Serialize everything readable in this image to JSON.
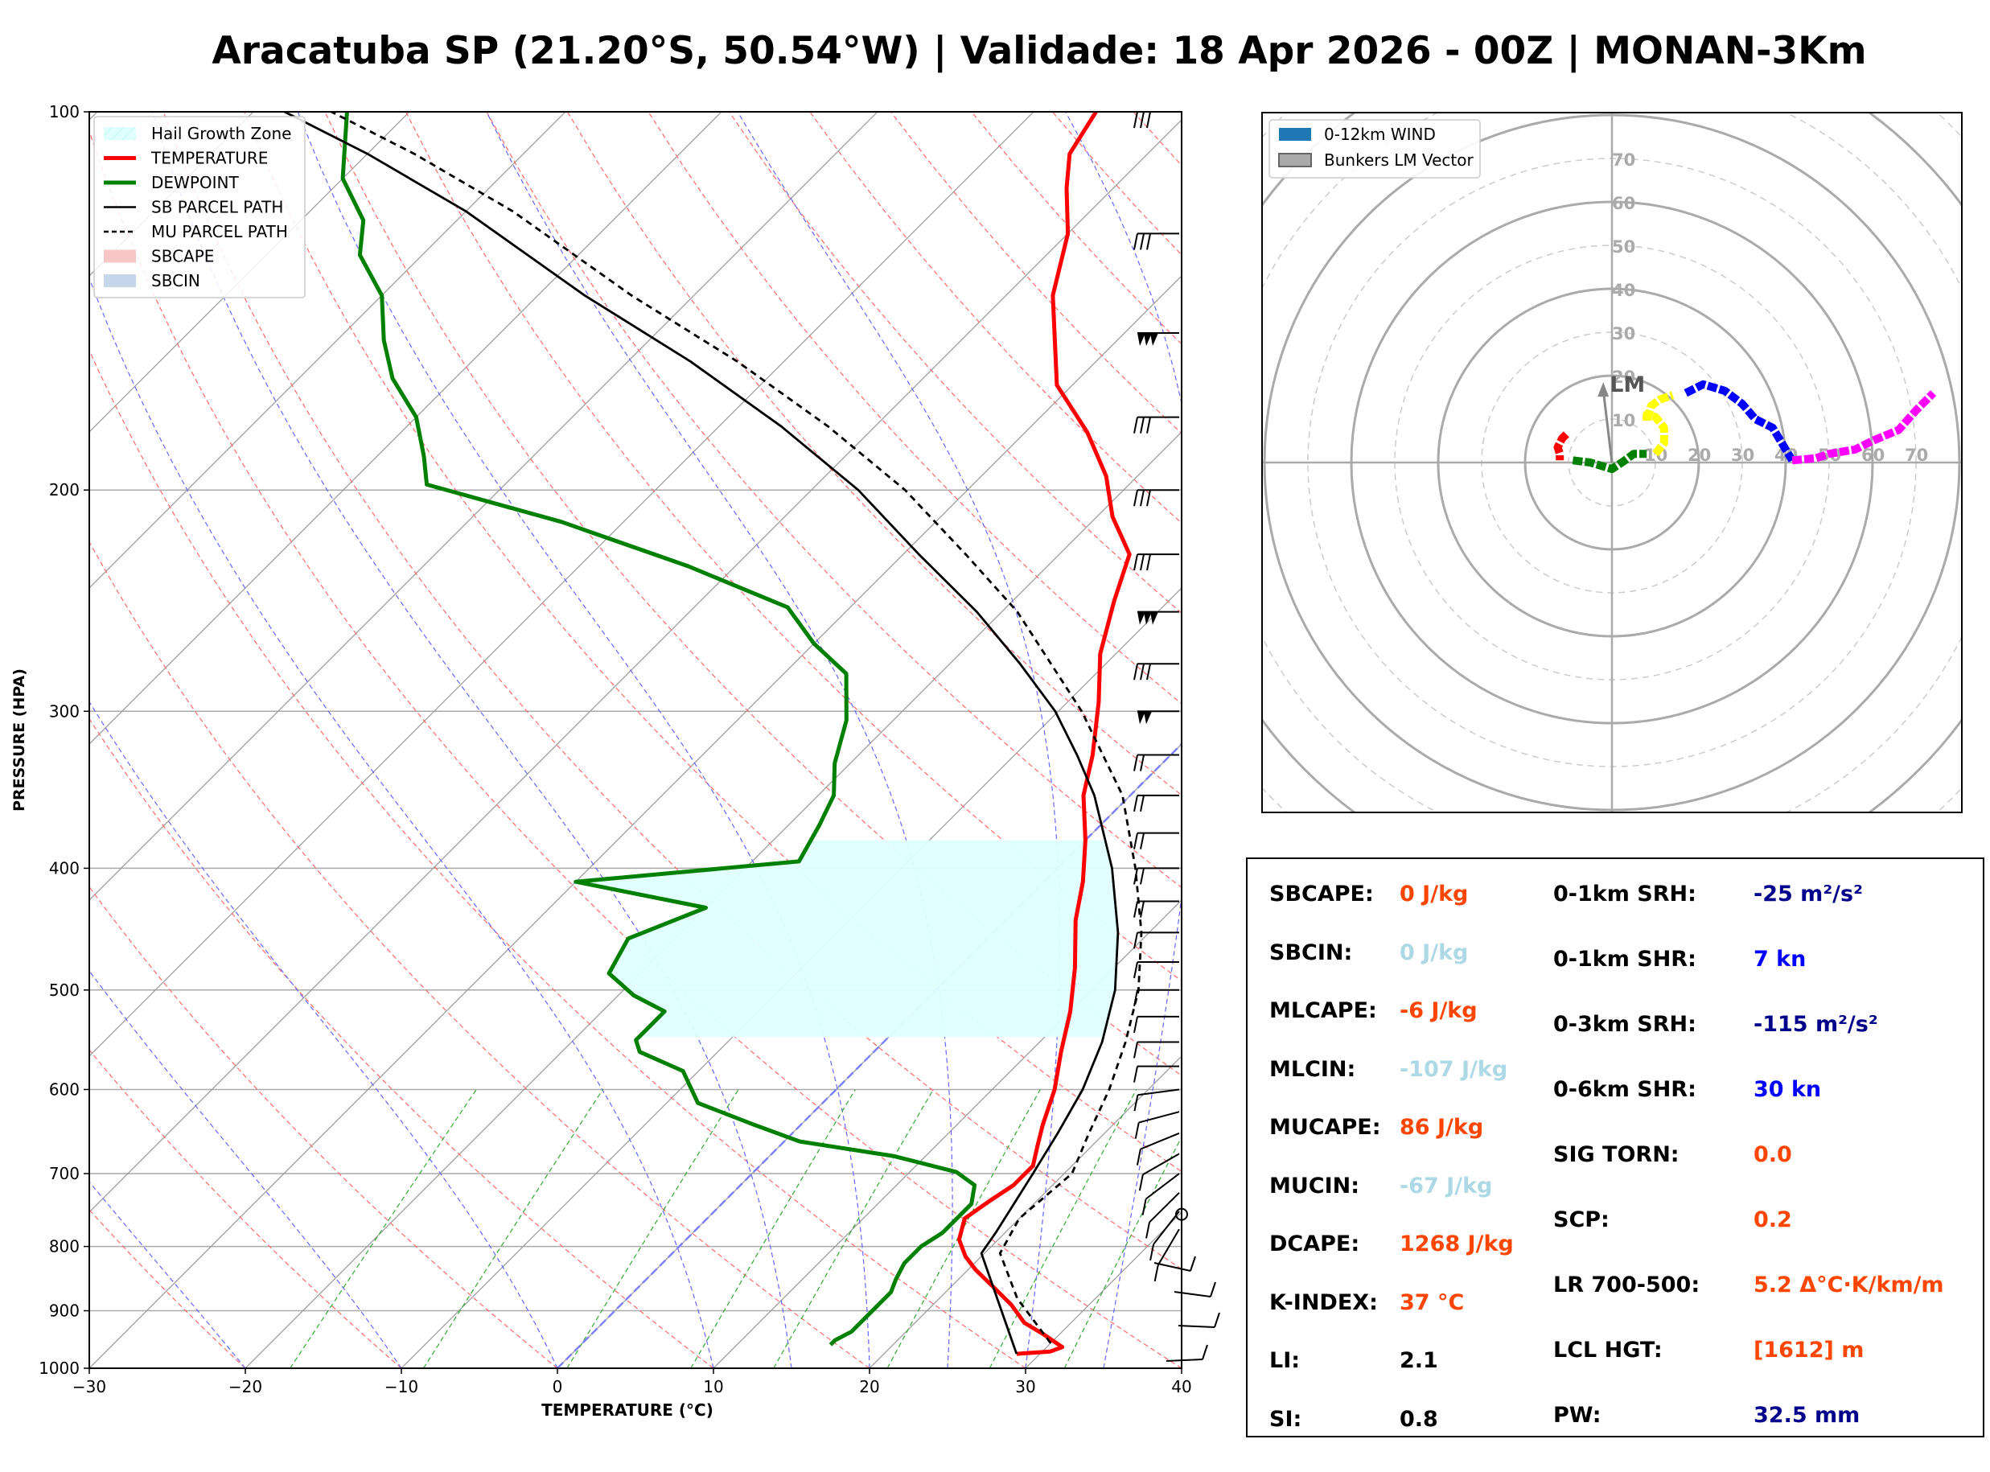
{
  "title": "Aracatuba SP (21.20°S, 50.54°W) | Validade: 18 Apr 2026 - 00Z | MONAN-3Km",
  "chart_data": [
    {
      "type": "skew-t",
      "xlabel": "TEMPERATURE (°C)",
      "ylabel": "PRESSURE (HPA)",
      "xlim": [
        -30,
        40
      ],
      "ylim": [
        1000,
        100
      ],
      "x_ticks": [
        "−30",
        "−20",
        "−10",
        "0",
        "10",
        "20",
        "30",
        "40"
      ],
      "x_tick_values": [
        -30,
        -20,
        -10,
        0,
        10,
        20,
        30,
        40
      ],
      "y_ticks": [
        "100",
        "200",
        "300",
        "400",
        "500",
        "600",
        "700",
        "800",
        "900",
        "1000"
      ],
      "y_tick_values": [
        100,
        200,
        300,
        400,
        500,
        600,
        700,
        800,
        900,
        1000
      ],
      "legend": {
        "location": "top-left",
        "entries": [
          {
            "label": "Hail Growth Zone",
            "color": "#e0ffff",
            "style": "patch-hatched"
          },
          {
            "label": "TEMPERATURE",
            "color": "#ff0000",
            "style": "line"
          },
          {
            "label": "DEWPOINT",
            "color": "#008000",
            "style": "line"
          },
          {
            "label": "SB PARCEL PATH",
            "color": "#000000",
            "style": "line"
          },
          {
            "label": "MU PARCEL PATH",
            "color": "#000000",
            "style": "dashed"
          },
          {
            "label": "SBCAPE",
            "color": "#f7c6c6",
            "style": "patch"
          },
          {
            "label": "SBCIN",
            "color": "#c6d6ea",
            "style": "patch"
          }
        ]
      },
      "series": [
        {
          "name": "TEMPERATURE",
          "color": "#ff0000",
          "points": [
            [
              28.5,
              974
            ],
            [
              30.5,
              970
            ],
            [
              31,
              962
            ],
            [
              29,
              940
            ],
            [
              27,
              920
            ],
            [
              25,
              890
            ],
            [
              23,
              865
            ],
            [
              20.5,
              835
            ],
            [
              19,
              815
            ],
            [
              17.5,
              790
            ],
            [
              16.5,
              760
            ],
            [
              17,
              735
            ],
            [
              17.5,
              715
            ],
            [
              17.5,
              690
            ],
            [
              16.5,
              665
            ],
            [
              15.5,
              640
            ],
            [
              14,
              600
            ],
            [
              12,
              560
            ],
            [
              10,
              520
            ],
            [
              7.5,
              480
            ],
            [
              4.5,
              440
            ],
            [
              2.5,
              410
            ],
            [
              0,
              380
            ],
            [
              -3,
              350
            ],
            [
              -5,
              325
            ],
            [
              -8,
              295
            ],
            [
              -11,
              270
            ],
            [
              -13.5,
              245
            ],
            [
              -15.5,
              225
            ],
            [
              -19,
              210
            ],
            [
              -22,
              195
            ],
            [
              -26,
              180
            ],
            [
              -31,
              165
            ],
            [
              -34,
              152
            ],
            [
              -37,
              140
            ],
            [
              -40,
              125
            ],
            [
              -43,
              115
            ],
            [
              -45,
              108
            ],
            [
              -46,
              100
            ]
          ]
        },
        {
          "name": "DEWPOINT",
          "color": "#008000",
          "points": [
            [
              16,
              958
            ],
            [
              16,
              950
            ],
            [
              16.5,
              935
            ],
            [
              16.5,
              918
            ],
            [
              16.5,
              905
            ],
            [
              16.5,
              888
            ],
            [
              16.5,
              870
            ],
            [
              16,
              850
            ],
            [
              15.5,
              825
            ],
            [
              15.5,
              800
            ],
            [
              16,
              780
            ],
            [
              16,
              760
            ],
            [
              16,
              740
            ],
            [
              15,
              715
            ],
            [
              13,
              698
            ],
            [
              8,
              678
            ],
            [
              1,
              660
            ],
            [
              -3,
              640
            ],
            [
              -8,
              615
            ],
            [
              -11,
              580
            ],
            [
              -15,
              560
            ],
            [
              -16,
              548
            ],
            [
              -16,
              520
            ],
            [
              -19,
              505
            ],
            [
              -22,
              485
            ],
            [
              -23,
              455
            ],
            [
              -20,
              430
            ],
            [
              -30,
              410
            ],
            [
              -17,
              395
            ],
            [
              -18,
              370
            ],
            [
              -19,
              350
            ],
            [
              -21,
              330
            ],
            [
              -23,
              305
            ],
            [
              -26,
              280
            ],
            [
              -30,
              265
            ],
            [
              -34,
              248
            ],
            [
              -43,
              230
            ],
            [
              -54,
              212
            ],
            [
              -65,
              198
            ],
            [
              -67,
              188
            ],
            [
              -70,
              175
            ],
            [
              -74,
              163
            ],
            [
              -77,
              152
            ],
            [
              -80,
              140
            ],
            [
              -84,
              130
            ],
            [
              -86,
              122
            ],
            [
              -90,
              113
            ],
            [
              -94,
              100
            ]
          ]
        },
        {
          "name": "SB PARCEL PATH",
          "color": "#000000",
          "style": "solid",
          "points": [
            [
              28.5,
              974
            ],
            [
              19.8,
              810
            ],
            [
              19.4,
              780
            ],
            [
              18,
              700
            ],
            [
              17,
              650
            ],
            [
              15.8,
              600
            ],
            [
              14,
              550
            ],
            [
              11.5,
              500
            ],
            [
              8,
              450
            ],
            [
              3.5,
              400
            ],
            [
              -2.3,
              350
            ],
            [
              -6,
              325
            ],
            [
              -10.2,
              300
            ],
            [
              -15.5,
              275
            ],
            [
              -21.6,
              250
            ],
            [
              -29,
              225
            ],
            [
              -37,
              200
            ],
            [
              -46,
              178
            ],
            [
              -56,
              158
            ],
            [
              -67,
              140
            ],
            [
              -80,
              120
            ],
            [
              -90,
              108
            ],
            [
              -98,
              100
            ]
          ]
        },
        {
          "name": "MU PARCEL PATH",
          "color": "#000000",
          "style": "dashed",
          "points": [
            [
              30,
              955
            ],
            [
              25,
              880
            ],
            [
              21,
              810
            ],
            [
              20,
              760
            ],
            [
              20.5,
              700
            ],
            [
              19,
              650
            ],
            [
              17.5,
              600
            ],
            [
              15.5,
              550
            ],
            [
              13,
              500
            ],
            [
              9.5,
              450
            ],
            [
              5,
              400
            ],
            [
              -0.5,
              350
            ],
            [
              -8.5,
              300
            ],
            [
              -19,
              250
            ],
            [
              -26,
              225
            ],
            [
              -34,
              200
            ],
            [
              -43,
              178
            ],
            [
              -53,
              158
            ],
            [
              -64,
              140
            ],
            [
              -77,
              120
            ],
            [
              -87,
              108
            ],
            [
              -95,
              100
            ]
          ]
        }
      ],
      "hail_growth_zone": {
        "p_bottom": 545,
        "p_top": 380,
        "color": "#e0ffff"
      },
      "wind_barbs_note": "wind barbs at right edge from 1000 to 100 hPa"
    },
    {
      "type": "hodograph",
      "ring_labels_vertical": [
        "10",
        "20",
        "30",
        "40",
        "50",
        "60",
        "70"
      ],
      "ring_labels_horizontal": [
        "10",
        "20",
        "30",
        "40",
        "50",
        "60",
        "70"
      ],
      "lm_label": "LM",
      "legend": {
        "location": "top-left",
        "entries": [
          {
            "label": "0-12km WIND",
            "color": "#1f77b4"
          },
          {
            "label": "Bunkers LM Vector",
            "color": "#aaaaaa"
          }
        ]
      },
      "segments": [
        {
          "color": "#ff0000",
          "points": [
            [
              -10.5,
              6.5
            ],
            [
              -11.5,
              5.5
            ],
            [
              -12.5,
              3.5
            ],
            [
              -12,
              2
            ],
            [
              -12,
              0.5
            ]
          ]
        },
        {
          "color": "#008000",
          "points": [
            [
              -9,
              0.5
            ],
            [
              -5,
              0
            ],
            [
              0,
              -1.5
            ],
            [
              3,
              0.5
            ],
            [
              5,
              2
            ],
            [
              8,
              2
            ]
          ]
        },
        {
          "color": "#ffff00",
          "points": [
            [
              10,
              2
            ],
            [
              12,
              4.5
            ],
            [
              12,
              8
            ],
            [
              10,
              10.5
            ],
            [
              8,
              11
            ],
            [
              8,
              9.5
            ],
            [
              9,
              13
            ],
            [
              11,
              14.5
            ],
            [
              14,
              15.5
            ]
          ]
        },
        {
          "color": "#0000ff",
          "points": [
            [
              17,
              16
            ],
            [
              21,
              18
            ],
            [
              26,
              16.5
            ],
            [
              30,
              13.5
            ],
            [
              33,
              10
            ],
            [
              37,
              8
            ],
            [
              40,
              3
            ],
            [
              41.5,
              0.5
            ]
          ]
        },
        {
          "color": "#ff00ff",
          "points": [
            [
              41.5,
              0.5
            ],
            [
              47,
              1
            ],
            [
              50,
              2
            ],
            [
              56,
              3
            ],
            [
              60,
              5
            ],
            [
              66,
              7.5
            ],
            [
              70,
              12
            ],
            [
              74,
              16
            ]
          ]
        }
      ],
      "bunkers_lm": [
        -2,
        18.5
      ]
    }
  ],
  "parameters": [
    {
      "label": "SBCAPE:",
      "value": "0 J/kg",
      "color": "#ff4500"
    },
    {
      "label": "SBCIN:",
      "value": "0 J/kg",
      "color": "#add8e6"
    },
    {
      "label": "MLCAPE:",
      "value": "-6 J/kg",
      "color": "#ff4500"
    },
    {
      "label": "MLCIN:",
      "value": "-107 J/kg",
      "color": "#add8e6"
    },
    {
      "label": "MUCAPE:",
      "value": "86 J/kg",
      "color": "#ff4500"
    },
    {
      "label": "MUCIN:",
      "value": "-67 J/kg",
      "color": "#add8e6"
    },
    {
      "label": "DCAPE:",
      "value": "1268 J/kg",
      "color": "#ff4500"
    },
    {
      "label": "K-INDEX:",
      "value": "37 °C",
      "color": "#ff4500"
    },
    {
      "label": "LI:",
      "value": "2.1",
      "color": "#000000"
    },
    {
      "label": "SI:",
      "value": "0.8",
      "color": "#000000"
    },
    {
      "label": "0-1km SRH:",
      "value": "-25 m²/s²",
      "color": "#00008b"
    },
    {
      "label": "0-1km SHR:",
      "value": "7 kn",
      "color": "#0000ff"
    },
    {
      "label": "0-3km SRH:",
      "value": "-115 m²/s²",
      "color": "#00008b"
    },
    {
      "label": "0-6km SHR:",
      "value": "30 kn",
      "color": "#0000ff"
    },
    {
      "label": "SIG TORN:",
      "value": "0.0",
      "color": "#ff4500"
    },
    {
      "label": "SCP:",
      "value": "0.2",
      "color": "#ff4500"
    },
    {
      "label": "LR 700-500:",
      "value": "5.2 Δ°C·K/km/m",
      "color": "#ff4500"
    },
    {
      "label": "LCL HGT:",
      "value": "[1612] m",
      "color": "#ff4500"
    },
    {
      "label": "PW:",
      "value": "32.5 mm",
      "color": "#00008b"
    }
  ]
}
